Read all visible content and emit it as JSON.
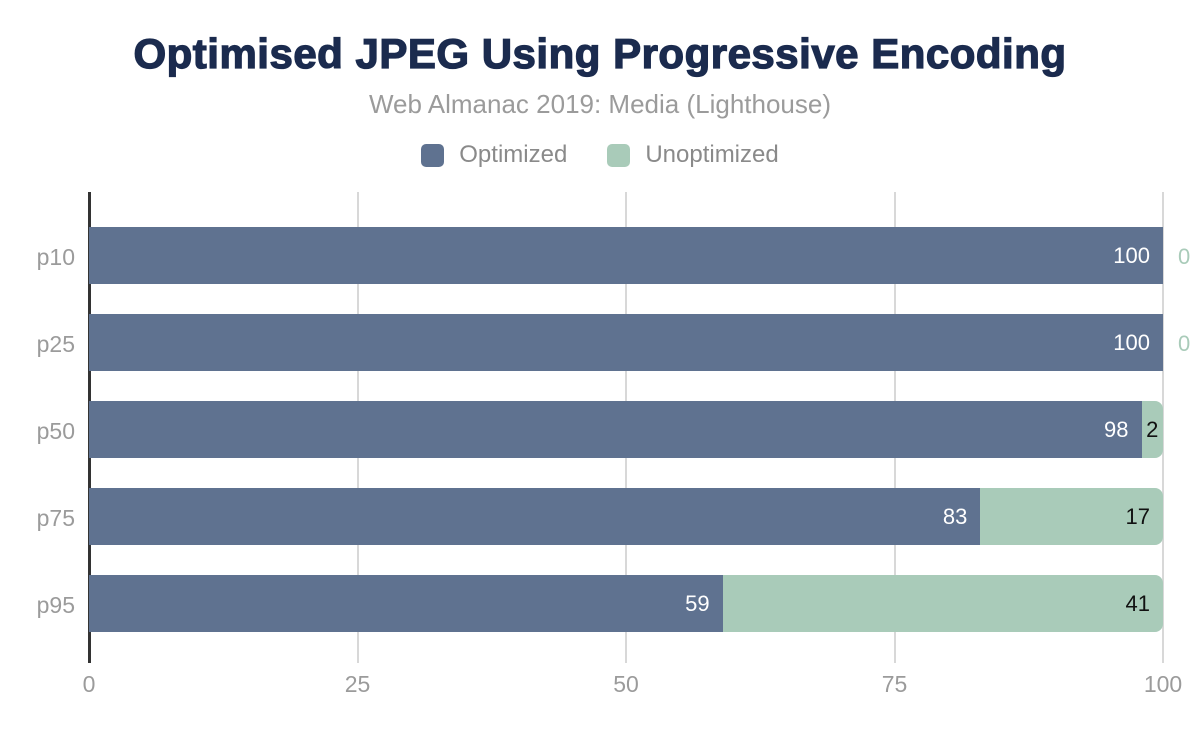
{
  "chart_data": {
    "type": "bar",
    "orientation": "horizontal",
    "stacked": true,
    "title": "Optimised JPEG Using Progressive Encoding",
    "subtitle": "Web Almanac 2019: Media (Lighthouse)",
    "categories": [
      "p10",
      "p25",
      "p50",
      "p75",
      "p95"
    ],
    "series": [
      {
        "name": "Optimized",
        "color": "#5f7290",
        "label_color": "#ffffff",
        "values": [
          100,
          100,
          98,
          83,
          59
        ]
      },
      {
        "name": "Unoptimized",
        "color": "#a9cbb9",
        "label_color": "#111111",
        "values": [
          0,
          0,
          2,
          17,
          41
        ]
      }
    ],
    "x_ticks": [
      0,
      25,
      50,
      75,
      100
    ],
    "xlim": [
      0,
      100
    ],
    "grid": "vertical",
    "legend_position": "top",
    "title_color": "#1b2b4e",
    "subtitle_color": "#9b9b9b",
    "axis_text_color": "#9b9b9b",
    "gridline_color": "#d8d8d8",
    "zero_axis_color": "#333333"
  }
}
